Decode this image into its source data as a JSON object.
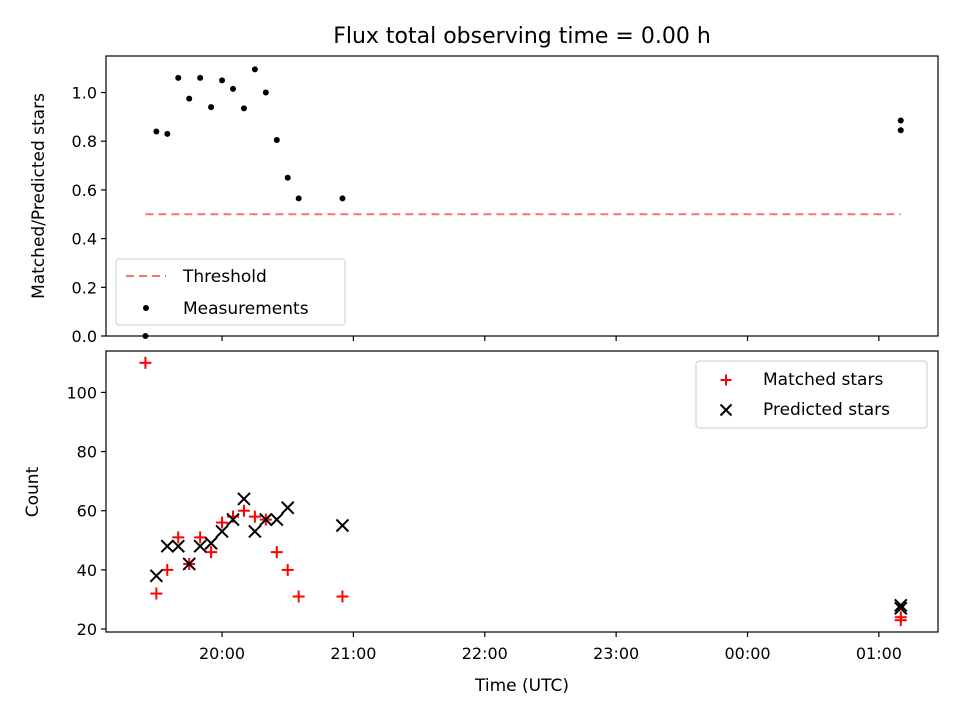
{
  "title": "Flux total observing time = 0.00 h",
  "chart_data": [
    {
      "type": "scatter",
      "ylabel": "Matched/Predicted stars",
      "ylim": [
        0,
        1.15
      ],
      "yticks": [
        0.0,
        0.2,
        0.4,
        0.6,
        0.8,
        1.0
      ],
      "ytick_labels": [
        "0.0",
        "0.2",
        "0.4",
        "0.6",
        "0.8",
        "1.0"
      ],
      "legend_position": "lower-left",
      "threshold": {
        "name": "Threshold",
        "value": 0.5,
        "color": "#ff7070",
        "x_range": [
          "19:25",
          "01:10"
        ]
      },
      "series": [
        {
          "name": "Measurements",
          "color": "#000000",
          "marker": "dot",
          "x": [
            "19:25",
            "19:30",
            "19:35",
            "19:40",
            "19:45",
            "19:50",
            "19:55",
            "20:00",
            "20:05",
            "20:10",
            "20:15",
            "20:20",
            "20:25",
            "20:30",
            "20:35",
            "20:55",
            "01:10",
            "01:10"
          ],
          "y": [
            0.0,
            0.84,
            0.83,
            1.06,
            0.975,
            1.06,
            0.94,
            1.05,
            1.015,
            0.935,
            1.095,
            1.0,
            0.805,
            0.65,
            0.565,
            0.565,
            0.885,
            0.845
          ]
        }
      ]
    },
    {
      "type": "scatter",
      "xlabel": "Time (UTC)",
      "ylabel": "Count",
      "ylim": [
        19,
        114
      ],
      "yticks": [
        20,
        40,
        60,
        80,
        100
      ],
      "ytick_labels": [
        "20",
        "40",
        "60",
        "80",
        "100"
      ],
      "xtick_labels": [
        "20:00",
        "21:00",
        "22:00",
        "23:00",
        "00:00",
        "01:00"
      ],
      "legend_position": "top-right",
      "series": [
        {
          "name": "Matched stars",
          "color": "#ff0000",
          "marker": "plus",
          "x": [
            "19:25",
            "19:30",
            "19:35",
            "19:40",
            "19:45",
            "19:50",
            "19:55",
            "20:00",
            "20:05",
            "20:10",
            "20:15",
            "20:20",
            "20:25",
            "20:30",
            "20:35",
            "20:55",
            "01:10",
            "01:10"
          ],
          "y": [
            110,
            32,
            40,
            51,
            42,
            51,
            46,
            56,
            58,
            60,
            58,
            57,
            46,
            40,
            31,
            31,
            23,
            24
          ]
        },
        {
          "name": "Predicted stars",
          "color": "#000000",
          "marker": "x",
          "x": [
            "19:30",
            "19:35",
            "19:40",
            "19:45",
            "19:50",
            "19:55",
            "20:00",
            "20:05",
            "20:10",
            "20:15",
            "20:20",
            "20:25",
            "20:30",
            "20:55",
            "01:10",
            "01:10"
          ],
          "y": [
            38,
            48,
            48,
            42,
            48,
            49,
            53,
            57,
            64,
            53,
            57,
            57,
            61,
            55,
            27,
            28
          ]
        }
      ]
    }
  ]
}
